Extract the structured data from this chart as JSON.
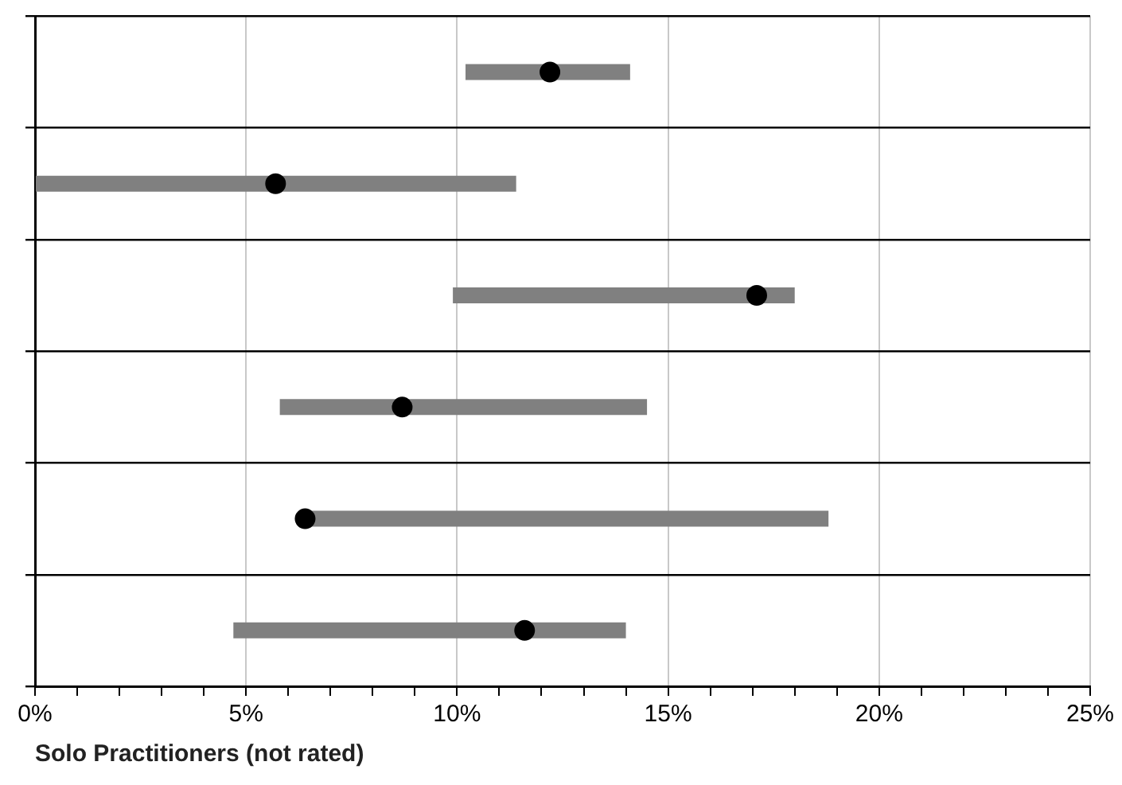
{
  "chart_data": {
    "type": "bar",
    "orientation": "horizontal",
    "xlabel": "Solo Practitioners (not rated)",
    "categories": [
      null,
      null,
      null,
      null,
      null,
      null
    ],
    "series": [
      {
        "color": "#808080",
        "base": [
          10.2,
          0,
          9.9,
          5.8,
          6.4,
          4.7
        ],
        "values": [
          3.9,
          11.4,
          8.1,
          8.7,
          12.4,
          9.3
        ]
      },
      {
        "type": "scatter",
        "color": "#000000",
        "values": [
          12.2,
          5.7,
          17.1,
          8.7,
          6.4,
          11.6
        ]
      }
    ],
    "xlim": [
      0,
      25
    ],
    "xticks": [
      {
        "value": 0,
        "label": "0%"
      },
      {
        "value": 1,
        "label": null
      },
      {
        "value": 2,
        "label": null
      },
      {
        "value": 3,
        "label": null
      },
      {
        "value": 4,
        "label": null
      },
      {
        "value": 5,
        "label": "5%"
      },
      {
        "value": 6,
        "label": null
      },
      {
        "value": 7,
        "label": null
      },
      {
        "value": 8,
        "label": null
      },
      {
        "value": 9,
        "label": null
      },
      {
        "value": 10,
        "label": "10%"
      },
      {
        "value": 11,
        "label": null
      },
      {
        "value": 12,
        "label": null
      },
      {
        "value": 13,
        "label": null
      },
      {
        "value": 14,
        "label": null
      },
      {
        "value": 15,
        "label": "15%"
      },
      {
        "value": 16,
        "label": null
      },
      {
        "value": 17,
        "label": null
      },
      {
        "value": 18,
        "label": null
      },
      {
        "value": 19,
        "label": null
      },
      {
        "value": 20,
        "label": "20%"
      },
      {
        "value": 21,
        "label": null
      },
      {
        "value": 22,
        "label": null
      },
      {
        "value": 23,
        "label": null
      },
      {
        "value": 24,
        "label": null
      },
      {
        "value": 25,
        "label": "25%"
      }
    ],
    "grid": true,
    "legend": false,
    "marker": "circle"
  }
}
